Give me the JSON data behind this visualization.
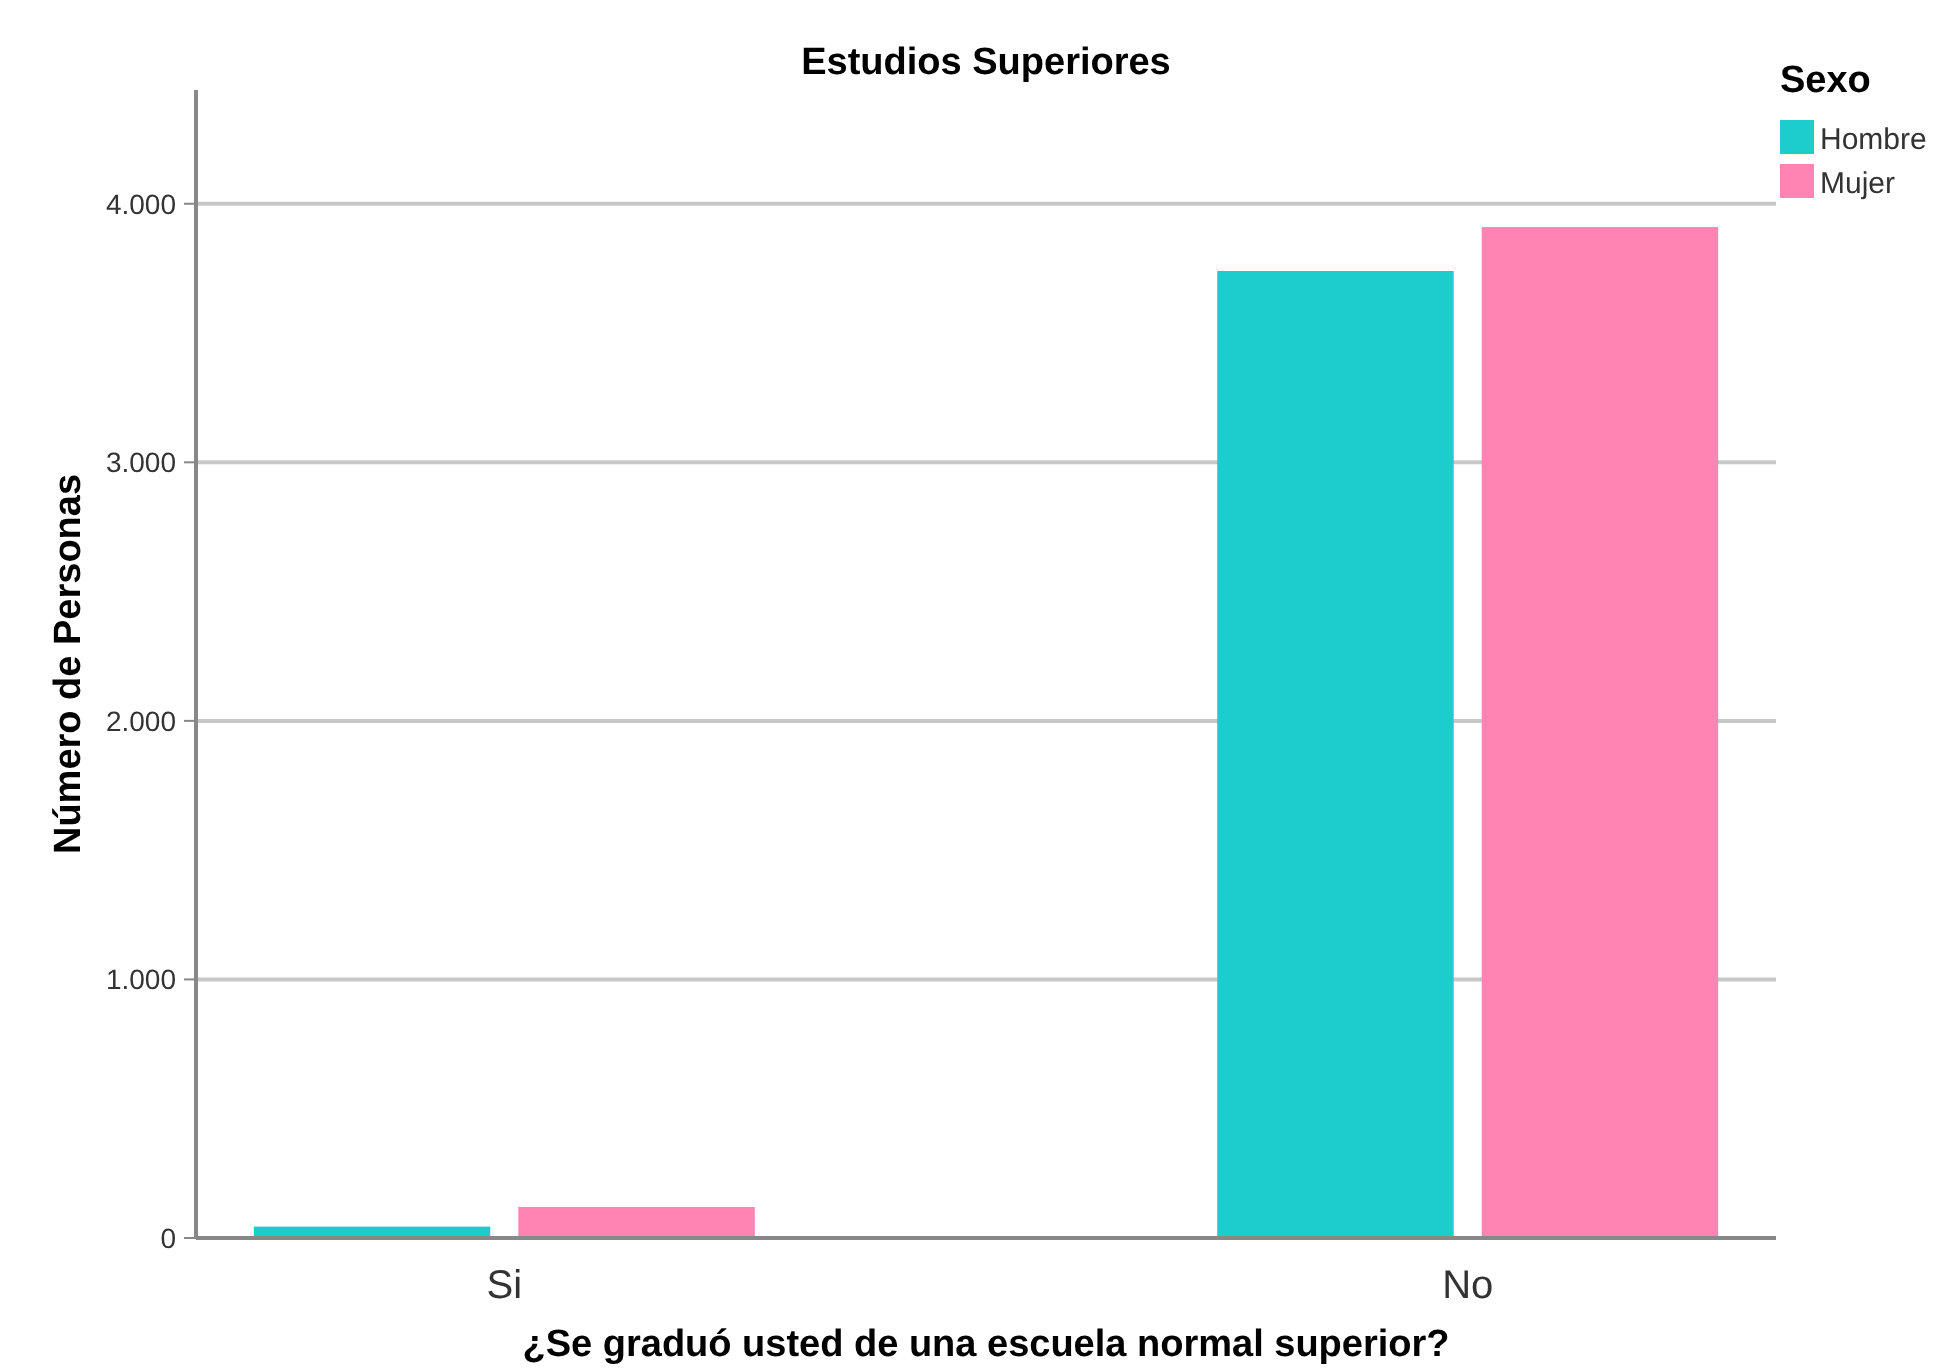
{
  "chart_data": {
    "type": "bar",
    "title": "Estudios Superiores",
    "xlabel": "¿Se graduó usted de una escuela normal superior?",
    "ylabel": "Número de Personas",
    "legend_title": "Sexo",
    "categories": [
      "Si",
      "No"
    ],
    "series": [
      {
        "name": "Hombre",
        "color": "#1dcdcd",
        "values": [
          44,
          3740
        ]
      },
      {
        "name": "Mujer",
        "color": "#ff84b4",
        "values": [
          120,
          3910
        ]
      }
    ],
    "ylim": [
      0,
      4440
    ],
    "yticks": [
      {
        "value": 0,
        "label": "0"
      },
      {
        "value": 1000,
        "label": "1.000"
      },
      {
        "value": 2000,
        "label": "2.000"
      },
      {
        "value": 3000,
        "label": "3.000"
      },
      {
        "value": 4000,
        "label": "4.000"
      }
    ],
    "grid": "y",
    "legend": "top right"
  }
}
